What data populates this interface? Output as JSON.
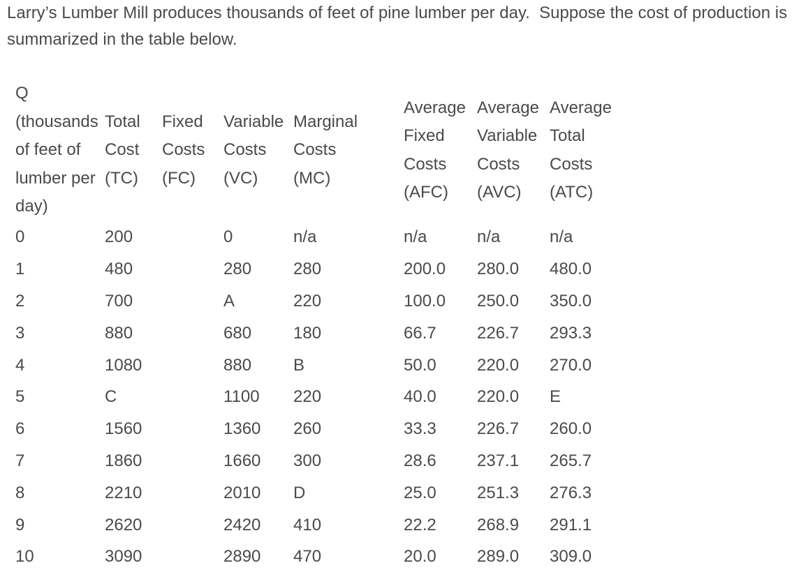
{
  "page": {
    "background_color": "#ffffff",
    "text_color": "#4a4a4a"
  },
  "intro": {
    "text": "Larry’s Lumber Mill produces thousands of feet of pine lumber per day.  Suppose the cost of production is summarized in the table below."
  },
  "table": {
    "headers": [
      "Q\n(thousands\nof feet of\nlumber per\nday)",
      "Total\nCost\n(TC)",
      "Fixed\nCosts\n(FC)",
      "Variable\nCosts\n(VC)",
      "Marginal\nCosts\n(MC)",
      "Average\nFixed\nCosts\n(AFC)",
      "Average\nVariable\nCosts\n(AVC)",
      "Average\nTotal\nCosts\n(ATC)"
    ],
    "rows": [
      [
        "0",
        "200",
        "",
        "0",
        "n/a",
        "n/a",
        "n/a",
        "n/a"
      ],
      [
        "1",
        "480",
        "",
        "280",
        "280",
        "200.0",
        "280.0",
        "480.0"
      ],
      [
        "2",
        "700",
        "",
        "A",
        "220",
        "100.0",
        "250.0",
        "350.0"
      ],
      [
        "3",
        "880",
        "",
        "680",
        "180",
        "66.7",
        "226.7",
        "293.3"
      ],
      [
        "4",
        "1080",
        "",
        "880",
        "B",
        "50.0",
        "220.0",
        "270.0"
      ],
      [
        "5",
        "C",
        "",
        "1100",
        "220",
        "40.0",
        "220.0",
        "E"
      ],
      [
        "6",
        "1560",
        "",
        "1360",
        "260",
        "33.3",
        "226.7",
        "260.0"
      ],
      [
        "7",
        "1860",
        "",
        "1660",
        "300",
        "28.6",
        "237.1",
        "265.7"
      ],
      [
        "8",
        "2210",
        "",
        "2010",
        "D",
        "25.0",
        "251.3",
        "276.3"
      ],
      [
        "9",
        "2620",
        "",
        "2420",
        "410",
        "22.2",
        "268.9",
        "291.1"
      ],
      [
        "10",
        "3090",
        "",
        "2890",
        "470",
        "20.0",
        "289.0",
        "309.0"
      ]
    ]
  },
  "chart_data": {
    "type": "table",
    "title": "Larry’s Lumber Mill cost of production",
    "columns": [
      "Q (thousands of feet of lumber per day)",
      "Total Cost (TC)",
      "Fixed Costs (FC)",
      "Variable Costs (VC)",
      "Marginal Costs (MC)",
      "Average Fixed Costs (AFC)",
      "Average Variable Costs (AVC)",
      "Average Total Costs (ATC)"
    ],
    "rows": [
      [
        "0",
        "200",
        "",
        "0",
        "n/a",
        "n/a",
        "n/a",
        "n/a"
      ],
      [
        "1",
        "480",
        "",
        "280",
        "280",
        "200.0",
        "280.0",
        "480.0"
      ],
      [
        "2",
        "700",
        "",
        "A",
        "220",
        "100.0",
        "250.0",
        "350.0"
      ],
      [
        "3",
        "880",
        "",
        "680",
        "180",
        "66.7",
        "226.7",
        "293.3"
      ],
      [
        "4",
        "1080",
        "",
        "880",
        "B",
        "50.0",
        "220.0",
        "270.0"
      ],
      [
        "5",
        "C",
        "",
        "1100",
        "220",
        "40.0",
        "220.0",
        "E"
      ],
      [
        "6",
        "1560",
        "",
        "1360",
        "260",
        "33.3",
        "226.7",
        "260.0"
      ],
      [
        "7",
        "1860",
        "",
        "1660",
        "300",
        "28.6",
        "237.1",
        "265.7"
      ],
      [
        "8",
        "2210",
        "",
        "2010",
        "D",
        "25.0",
        "251.3",
        "276.3"
      ],
      [
        "9",
        "2620",
        "",
        "2420",
        "410",
        "22.2",
        "268.9",
        "291.1"
      ],
      [
        "10",
        "3090",
        "",
        "2890",
        "470",
        "20.0",
        "289.0",
        "309.0"
      ]
    ]
  }
}
